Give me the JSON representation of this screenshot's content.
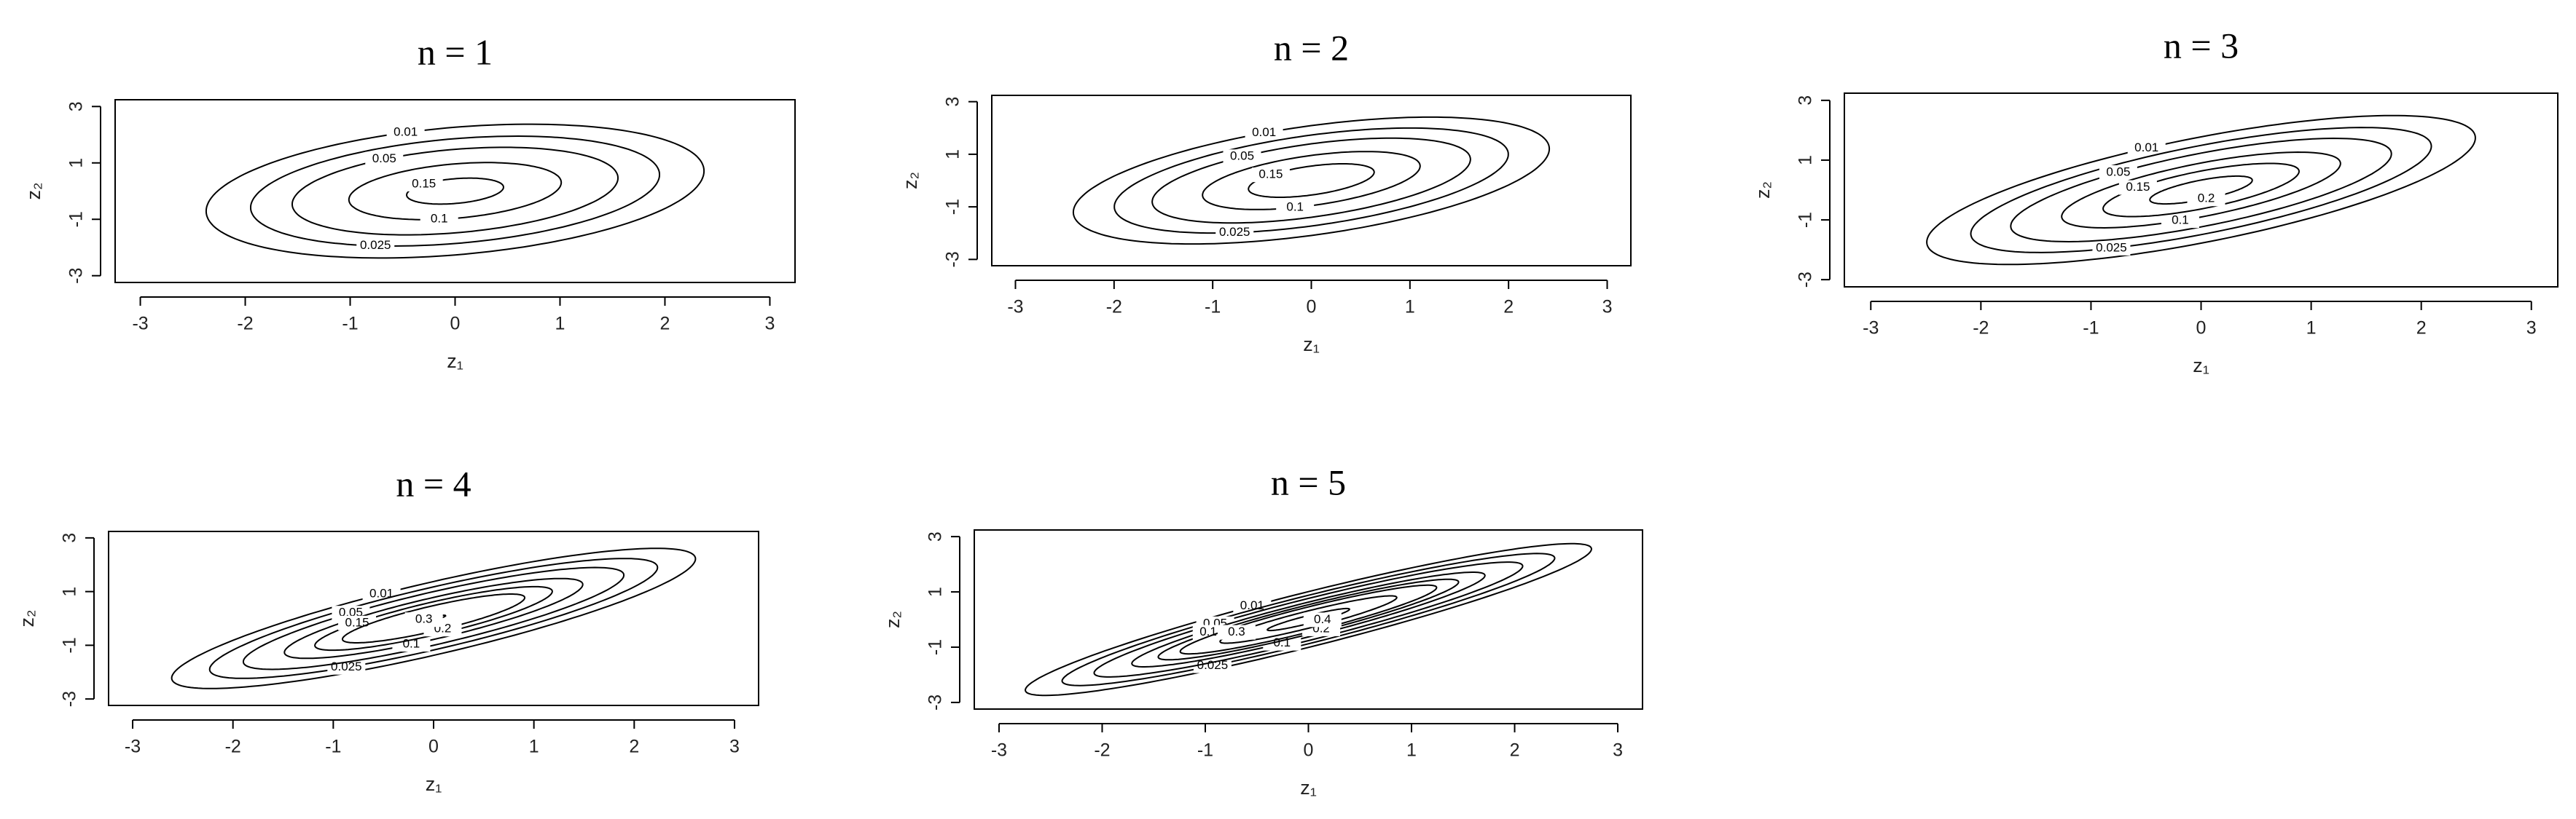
{
  "chart_data": [
    {
      "type": "contour",
      "title": "n = 1",
      "xlabel": "z₁",
      "ylabel": "z₂",
      "xlim": [
        -3.24,
        3.24
      ],
      "ylim": [
        -3.24,
        3.24
      ],
      "xticks": [
        -3,
        -2,
        -1,
        0,
        1,
        2,
        3
      ],
      "yticks": [
        -3,
        -1,
        1,
        3
      ],
      "levels": [
        0.01,
        0.025,
        0.05,
        0.1,
        0.15
      ],
      "color": "#000000"
    },
    {
      "type": "contour",
      "title": "n = 2",
      "xlabel": "z₁",
      "ylabel": "z₂",
      "xlim": [
        -3.24,
        3.24
      ],
      "ylim": [
        -3.24,
        3.24
      ],
      "xticks": [
        -3,
        -2,
        -1,
        0,
        1,
        2,
        3
      ],
      "yticks": [
        -3,
        -1,
        1,
        3
      ],
      "levels": [
        0.01,
        0.025,
        0.05,
        0.1,
        0.15
      ],
      "color": "#000000"
    },
    {
      "type": "contour",
      "title": "n = 3",
      "xlabel": "z₁",
      "ylabel": "z₂",
      "xlim": [
        -3.24,
        3.24
      ],
      "ylim": [
        -3.24,
        3.24
      ],
      "xticks": [
        -3,
        -2,
        -1,
        0,
        1,
        2,
        3
      ],
      "yticks": [
        -3,
        -1,
        1,
        3
      ],
      "levels": [
        0.01,
        0.025,
        0.05,
        0.1,
        0.15,
        0.2
      ],
      "color": "#000000"
    },
    {
      "type": "contour",
      "title": "n = 4",
      "xlabel": "z₁",
      "ylabel": "z₂",
      "xlim": [
        -3.24,
        3.24
      ],
      "ylim": [
        -3.24,
        3.24
      ],
      "xticks": [
        -3,
        -2,
        -1,
        0,
        1,
        2,
        3
      ],
      "yticks": [
        -3,
        -1,
        1,
        3
      ],
      "levels": [
        0.01,
        0.025,
        0.05,
        0.1,
        0.15,
        0.2,
        0.3
      ],
      "color": "#000000"
    },
    {
      "type": "contour",
      "title": "n = 5",
      "xlabel": "z₁",
      "ylabel": "z₂",
      "xlim": [
        -3.24,
        3.24
      ],
      "ylim": [
        -3.24,
        3.24
      ],
      "xticks": [
        -3,
        -2,
        -1,
        0,
        1,
        2,
        3
      ],
      "yticks": [
        -3,
        -1,
        1,
        3
      ],
      "levels": [
        0.01,
        0.025,
        0.05,
        0.1,
        0.15,
        0.2,
        0.3,
        0.4
      ],
      "color": "#000000"
    }
  ]
}
